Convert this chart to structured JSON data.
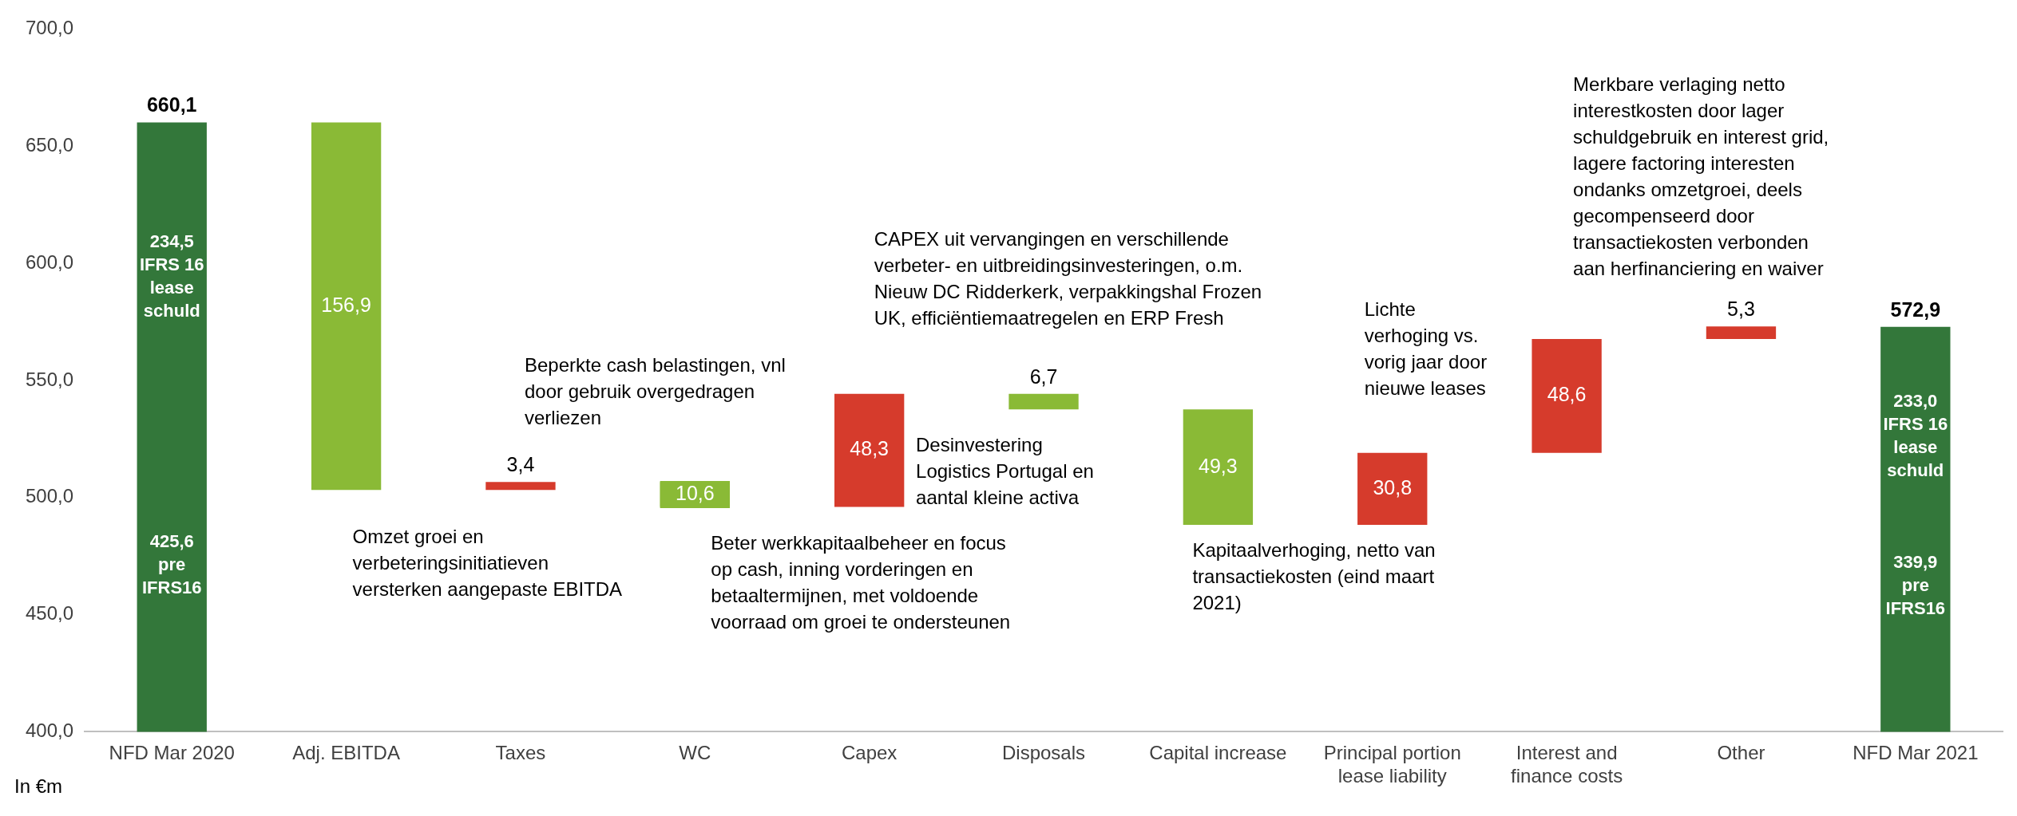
{
  "chart_data": {
    "type": "bar",
    "stacked": true,
    "ylabel": "In €m",
    "categories": [
      "NFD Mar 2020",
      "Adj. EBITDA",
      "Taxes",
      "WC",
      "Capex",
      "Disposals",
      "Capital increase",
      "Principal portion lease liability",
      "Interest and finance costs",
      "Other",
      "NFD Mar 2021"
    ],
    "series": [
      {
        "color": "#33773a",
        "base": [
          0,
          null,
          null,
          null,
          null,
          null,
          null,
          null,
          null,
          null,
          0
        ],
        "values": [
          660.1,
          null,
          null,
          null,
          null,
          null,
          null,
          null,
          null,
          null,
          572.9
        ]
      },
      {
        "colors": [
          null,
          "#8aba36",
          "#d63b2c",
          "#8aba36",
          "#d63b2c",
          "#8aba36",
          "#8aba36",
          "#d63b2c",
          "#d63b2c",
          "#d63b2c",
          null
        ],
        "base": [
          null,
          503.2,
          503.2,
          496.0,
          496.0,
          537.6,
          488.3,
          488.3,
          519.1,
          567.7,
          null
        ],
        "values": [
          null,
          156.9,
          3.4,
          10.6,
          48.3,
          6.7,
          49.3,
          30.8,
          48.6,
          5.3,
          null
        ],
        "value_labels": [
          null,
          "156,9",
          "3,4",
          "10,6",
          "48,3",
          "6,7",
          "49,3",
          "30,8",
          "48,6",
          "5,3",
          null
        ]
      }
    ],
    "totals": [
      "660,1",
      null,
      null,
      null,
      null,
      null,
      null,
      null,
      null,
      null,
      "572,9"
    ],
    "ylim": [
      400,
      700
    ],
    "yticks": [
      {
        "value": 400,
        "label": "400,0"
      },
      {
        "value": 450,
        "label": "450,0"
      },
      {
        "value": 500,
        "label": "500,0"
      },
      {
        "value": 550,
        "label": "550,0"
      },
      {
        "value": 600,
        "label": "600,0"
      },
      {
        "value": 650,
        "label": "650,0"
      },
      {
        "value": 700,
        "label": "700,0"
      }
    ],
    "grid": false,
    "legend": false,
    "annotations": [
      "Omzet groei en\nverbeteringsinitiatieven\nversterken aangepaste EBITDA",
      "Beperkte cash belastingen, vnl\ndoor gebruik overgedragen\nverliezen",
      "Beter werkkapitaalbeheer en focus\nop cash, inning vorderingen en\nbetaaltermijnen, met voldoende\nvoorraad om groei te ondersteunen",
      "CAPEX uit vervangingen en verschillende\nverbeter- en uitbreidingsinvesteringen, o.m.\nNieuw DC Ridderkerk, verpakkingshal Frozen\nUK, efficiëntiemaatregelen en ERP Fresh",
      "Desinvestering\nLogistics Portugal en\naantal kleine activa",
      "Kapitaalverhoging, netto van\ntransactiekosten (eind maart\n2021)",
      "Lichte\nverhoging vs.\nvorig jaar door\nnieuwe leases",
      "Merkbare verlaging netto\ninterestkosten door lager\nschuldgebruik en interest grid,\nlagere factoring interesten\nondanks omzetgroei, deels\ngecompenseerd door\ntransactiekosten verbonden\naan herfinanciering en waiver",
      "234,5\nIFRS 16\nlease\nschuld",
      "425,6\npre\nIFRS16",
      "233,0\nIFRS 16\nlease\nschuld",
      "339,9\npre\nIFRS16"
    ]
  }
}
